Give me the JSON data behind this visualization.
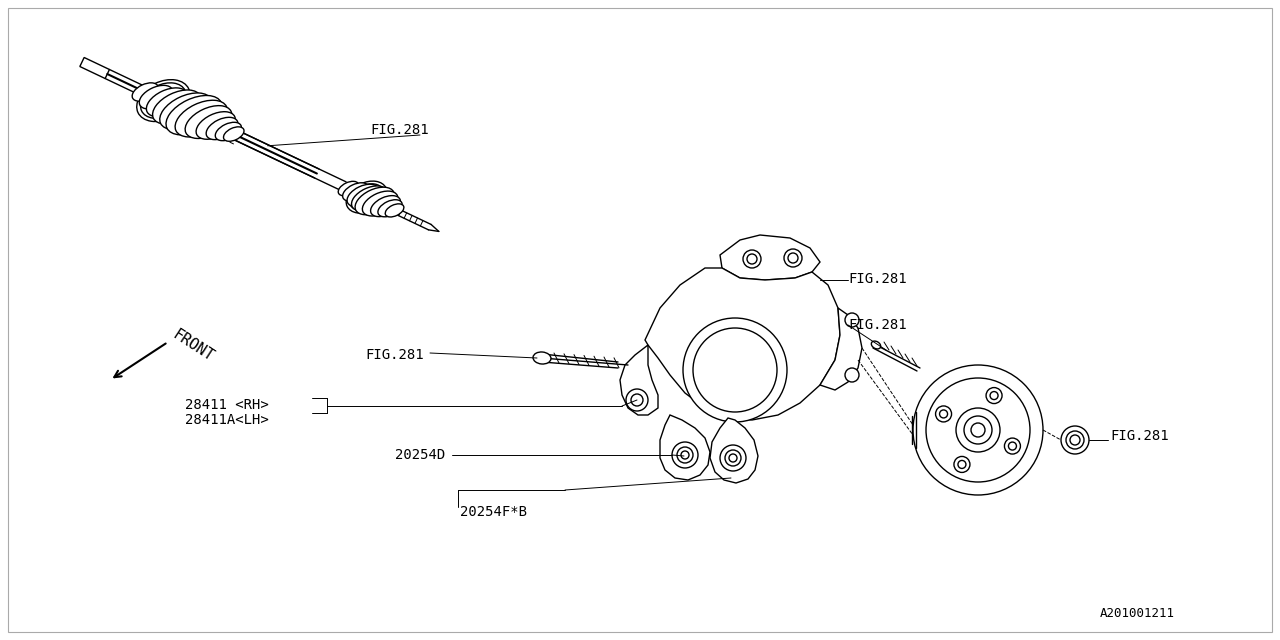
{
  "bg_color": "#ffffff",
  "line_color": "#000000",
  "part_number": "A201001211",
  "labels": {
    "fig281_axle": "FIG.281",
    "fig281_bolt": "FIG.281",
    "fig281_upper": "FIG.281",
    "fig281_screw": "FIG.281",
    "fig281_nut": "FIG.281",
    "part_28411": "28411 <RH>",
    "part_28411A": "28411A<LH>",
    "part_20254D": "20254D",
    "part_20254F": "20254F*B",
    "front_label": "FRONT"
  },
  "font_size": 10,
  "lw_main": 1.0,
  "lw_thin": 0.7,
  "lw_thick": 1.5,
  "diagram_scale": 1.0
}
